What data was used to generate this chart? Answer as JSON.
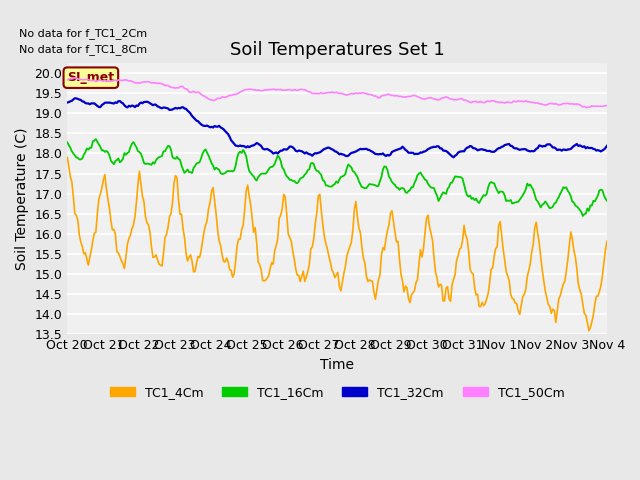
{
  "title": "Soil Temperatures Set 1",
  "xlabel": "Time",
  "ylabel": "Soil Temperature (C)",
  "no_data_text": [
    "No data for f_TC1_2Cm",
    "No data for f_TC1_8Cm"
  ],
  "si_met_label": "SI_met",
  "ylim": [
    13.5,
    20.25
  ],
  "yticks": [
    13.5,
    14.0,
    14.5,
    15.0,
    15.5,
    16.0,
    16.5,
    17.0,
    17.5,
    18.0,
    18.5,
    19.0,
    19.5,
    20.0
  ],
  "x_tick_labels": [
    "Oct 20",
    "Oct 21",
    "Oct 22",
    "Oct 23",
    "Oct 24",
    "Oct 25",
    "Oct 26",
    "Oct 27",
    "Oct 28",
    "Oct 29",
    "Oct 30",
    "Oct 31",
    "Nov 1",
    "Nov 2",
    "Nov 3",
    "Nov 4"
  ],
  "colors": {
    "TC1_4Cm": "#FFA500",
    "TC1_16Cm": "#00CC00",
    "TC1_32Cm": "#0000CC",
    "TC1_50Cm": "#FF80FF"
  },
  "legend_labels": [
    "TC1_4Cm",
    "TC1_16Cm",
    "TC1_32Cm",
    "TC1_50Cm"
  ],
  "background_color": "#E8E8E8",
  "plot_bg_color": "#F0F0F0",
  "grid_color": "#FFFFFF",
  "title_fontsize": 13,
  "axis_fontsize": 10,
  "tick_fontsize": 9
}
